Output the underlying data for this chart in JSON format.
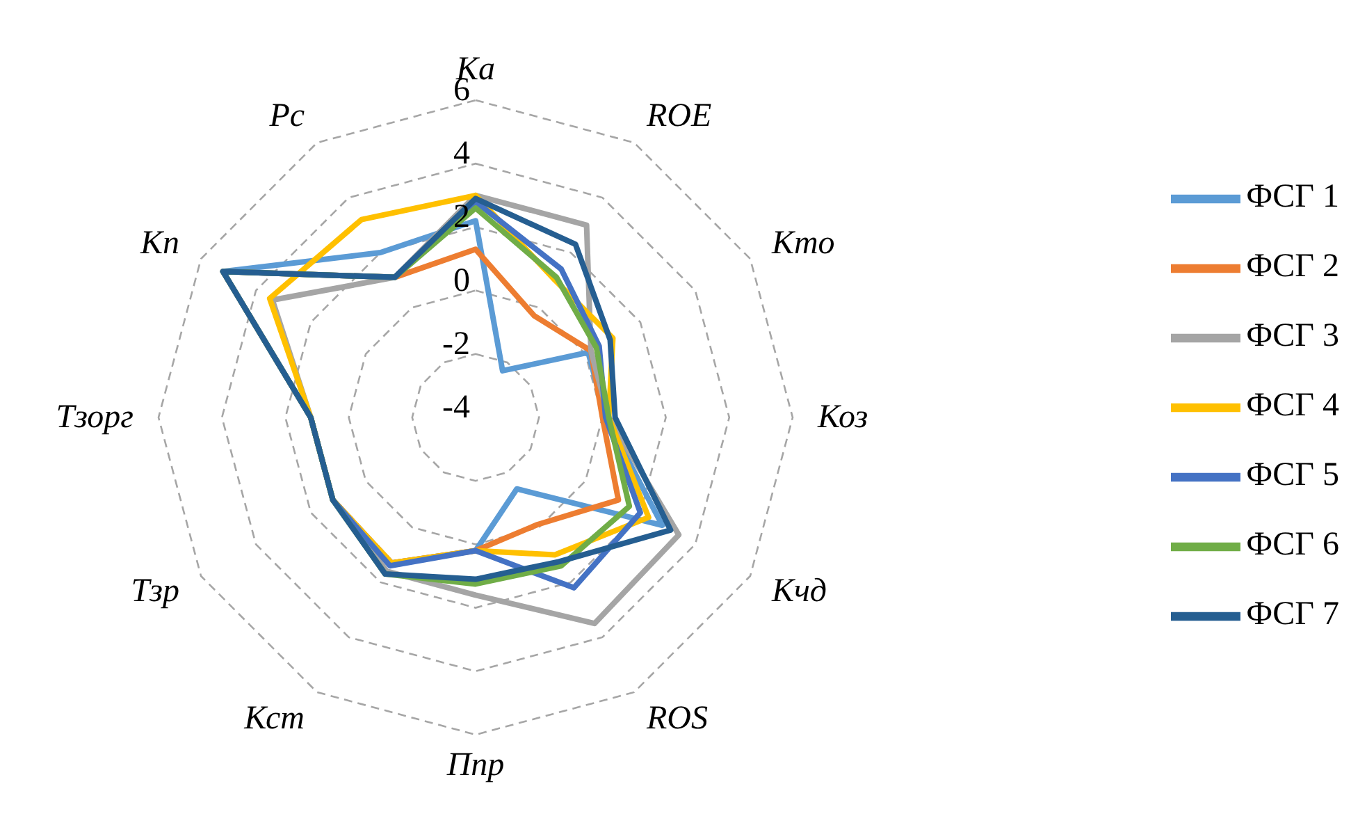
{
  "chart_data": {
    "type": "radar",
    "categories": [
      "Ка",
      "ROE",
      "Кто",
      "Коз",
      "Кчд",
      "ROS",
      "Ппр",
      "Кст",
      "Тзр",
      "Тзорг",
      "Кп",
      "Рс"
    ],
    "ylim": [
      -4,
      6
    ],
    "yticks": [
      -4,
      -2,
      0,
      2,
      4,
      6
    ],
    "grid": true,
    "legend": "right",
    "marker": "none",
    "line_style": "solid",
    "series": [
      {
        "name": "ФСГ 1",
        "color": "#5b9bd5",
        "values": [
          2.2,
          -2.3,
          0.1,
          0.1,
          2.8,
          -1.4,
          0.2,
          1.3,
          1.2,
          1.2,
          5.2,
          2.0
        ]
      },
      {
        "name": "ФСГ 2",
        "color": "#ed7d31",
        "values": [
          1.3,
          -0.3,
          0.2,
          0,
          1.2,
          -0.1,
          0.2,
          1.3,
          1.2,
          1.2,
          5.2,
          1.1
        ]
      },
      {
        "name": "ФСГ 3",
        "color": "#a5a5a5",
        "values": [
          3.0,
          3.0,
          0.2,
          0.2,
          3.4,
          3.5,
          1.6,
          1.6,
          1.2,
          1.2,
          3.4,
          1.1
        ]
      },
      {
        "name": "ФСГ 4",
        "color": "#ffc000",
        "values": [
          3.0,
          1.0,
          1.0,
          0.2,
          2.3,
          1.0,
          0.2,
          1.3,
          1.2,
          1.2,
          3.5,
          3.2
        ]
      },
      {
        "name": "ФСГ 5",
        "color": "#4472c4",
        "values": [
          2.8,
          1.4,
          0.5,
          0.1,
          2.0,
          2.2,
          0.2,
          1.4,
          1.2,
          1.2,
          5.2,
          1.1
        ]
      },
      {
        "name": "ФСГ 6",
        "color": "#70ad47",
        "values": [
          2.6,
          1.1,
          0.4,
          0.2,
          1.6,
          1.4,
          1.25,
          1.7,
          1.2,
          1.2,
          5.2,
          1.1
        ]
      },
      {
        "name": "ФСГ 7",
        "color": "#255e91",
        "values": [
          2.9,
          2.3,
          0.9,
          0.4,
          3.1,
          1.25,
          1.1,
          1.7,
          1.2,
          1.2,
          5.2,
          1.1
        ]
      }
    ]
  }
}
